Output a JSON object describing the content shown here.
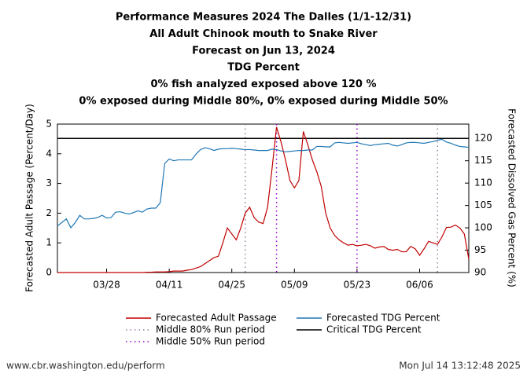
{
  "chart_data": {
    "type": "line",
    "title_lines": [
      "Performance Measures 2024 The Dalles (1/1-12/31)",
      "All Adult Chinook mouth to Snake River",
      "Forecast on Jun 13, 2024",
      "TDG Percent",
      "0% fish analyzed exposed above 120 %",
      "0% exposed during Middle 80%, 0% exposed during Middle 50%"
    ],
    "ylabel": "Forecasted Adult Passage (Percent/Day)",
    "y2label": "Forecasted Dissolved Gas Percent (%)",
    "x": [
      "03/17",
      "03/18",
      "03/19",
      "03/20",
      "03/21",
      "03/22",
      "03/23",
      "03/24",
      "03/25",
      "03/26",
      "03/27",
      "03/28",
      "03/29",
      "03/30",
      "03/31",
      "04/01",
      "04/02",
      "04/03",
      "04/04",
      "04/05",
      "04/06",
      "04/07",
      "04/08",
      "04/09",
      "04/10",
      "04/11",
      "04/12",
      "04/13",
      "04/14",
      "04/15",
      "04/16",
      "04/17",
      "04/18",
      "04/19",
      "04/20",
      "04/21",
      "04/22",
      "04/23",
      "04/24",
      "04/25",
      "04/26",
      "04/27",
      "04/28",
      "04/29",
      "04/30",
      "05/01",
      "05/02",
      "05/03",
      "05/04",
      "05/05",
      "05/06",
      "05/07",
      "05/08",
      "05/09",
      "05/10",
      "05/11",
      "05/12",
      "05/13",
      "05/14",
      "05/15",
      "05/16",
      "05/17",
      "05/18",
      "05/19",
      "05/20",
      "05/21",
      "05/22",
      "05/23",
      "05/24",
      "05/25",
      "05/26",
      "05/27",
      "05/28",
      "05/29",
      "05/30",
      "05/31",
      "06/01",
      "06/02",
      "06/03",
      "06/04",
      "06/05",
      "06/06",
      "06/07",
      "06/08",
      "06/09",
      "06/10",
      "06/11",
      "06/12",
      "06/13",
      "06/14",
      "06/15",
      "06/16",
      "06/17"
    ],
    "xlim": [
      "03/17",
      "06/17"
    ],
    "xticks": [
      "03/28",
      "04/11",
      "04/25",
      "05/09",
      "05/23",
      "06/06"
    ],
    "ylim": [
      0,
      5
    ],
    "yticks": [
      0,
      1,
      2,
      3,
      4,
      5
    ],
    "y2lim": [
      90,
      123.2
    ],
    "y2ticks": [
      90,
      95,
      100,
      105,
      110,
      115,
      120
    ],
    "series": [
      {
        "name": "Forecasted Adult Passage",
        "color": "#c00000",
        "values": [
          0,
          0,
          0,
          0,
          0,
          0,
          0,
          0,
          0,
          0,
          0,
          0,
          0,
          0,
          0,
          0,
          0,
          0,
          0,
          0,
          0.01,
          0.01,
          0.02,
          0.02,
          0.02,
          0.03,
          0.05,
          0.05,
          0.05,
          0.08,
          0.1,
          0.15,
          0.2,
          0.3,
          0.4,
          0.5,
          0.55,
          1.0,
          1.5,
          1.3,
          1.1,
          1.5,
          2.0,
          2.2,
          1.85,
          1.7,
          1.65,
          2.2,
          3.5,
          4.9,
          4.4,
          3.8,
          3.1,
          2.85,
          3.1,
          4.75,
          4.3,
          3.8,
          3.4,
          2.9,
          2.0,
          1.5,
          1.25,
          1.1,
          1.0,
          0.92,
          0.95,
          0.9,
          0.92,
          0.95,
          0.9,
          0.82,
          0.86,
          0.88,
          0.78,
          0.75,
          0.78,
          0.7,
          0.7,
          0.88,
          0.8,
          0.58,
          0.8,
          1.05,
          1.0,
          0.95,
          1.2,
          1.52,
          1.53,
          1.6,
          1.5,
          1.3,
          0.45
        ]
      },
      {
        "name": "Forecasted TDG Percent",
        "color": "#1f77b4",
        "axis": "y2",
        "values": [
          100.4,
          101.2,
          102,
          100,
          101.2,
          102.8,
          102,
          102,
          102.1,
          102.3,
          102.8,
          102.2,
          102.3,
          103.5,
          103.6,
          103.3,
          103.1,
          103.4,
          103.8,
          103.5,
          104.2,
          104.4,
          104.4,
          105.6,
          114.4,
          115.4,
          115,
          115.2,
          115.2,
          115.2,
          115.2,
          116.5,
          117.5,
          117.9,
          117.7,
          117.3,
          117.6,
          117.7,
          117.7,
          117.8,
          117.7,
          117.6,
          117.5,
          117.5,
          117.4,
          117.3,
          117.3,
          117.3,
          117.6,
          117.5,
          117.2,
          117,
          117.1,
          117.2,
          117.3,
          117.3,
          117.4,
          117.4,
          118.2,
          118.2,
          118.1,
          118.1,
          119,
          119.1,
          119,
          118.9,
          119,
          119.1,
          118.8,
          118.6,
          118.4,
          118.6,
          118.7,
          118.8,
          118.9,
          118.5,
          118.3,
          118.6,
          119,
          119.1,
          119.1,
          119,
          118.9,
          119.1,
          119.3,
          119.6,
          119.8,
          119.2,
          118.9,
          118.5,
          118.2,
          118.1,
          118.0
        ]
      }
    ],
    "run_periods": [
      {
        "name": "Middle 80% Run period",
        "color": "#9a7fa0",
        "dates": [
          "04/28",
          "06/10"
        ]
      },
      {
        "name": "Middle 50% Run period",
        "color": "#9400d3",
        "dates": [
          "05/05",
          "05/23"
        ]
      }
    ],
    "reference_lines": [
      {
        "name": "Critical TDG Percent",
        "color": "#000000",
        "value": 120,
        "axis": "y2"
      }
    ]
  },
  "footer": {
    "source": "www.cbr.washington.edu/perform",
    "timestamp": "Mon Jul 14 13:12:48 2025"
  }
}
